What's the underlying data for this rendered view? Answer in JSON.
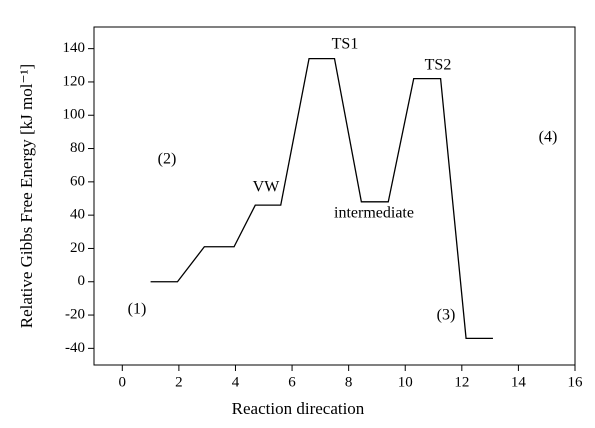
{
  "chart_data": {
    "type": "line",
    "x_label": "Reaction direcation",
    "y_label": "Relative Gibbs Free Energy [kJ mol⁻¹]",
    "x": [
      1,
      1.95,
      2.9,
      3.95,
      4.7,
      5.6,
      6.6,
      7.5,
      8.45,
      9.4,
      10.3,
      11.25,
      12.15,
      13.1
    ],
    "series": [
      {
        "color": "#000000",
        "values": [
          0,
          0,
          21,
          21,
          46,
          46,
          134,
          134,
          48,
          48,
          122,
          122,
          -34,
          -34
        ]
      }
    ],
    "xlim": [
      -1,
      16
    ],
    "xticks": [
      0,
      2,
      4,
      6,
      8,
      10,
      12,
      14,
      16
    ],
    "ylim": [
      -50,
      153
    ],
    "yticks": [
      -40,
      -20,
      0,
      20,
      40,
      60,
      80,
      100,
      120,
      140
    ],
    "annotations": [
      "TS1",
      "TS2",
      "VW",
      "intermediate",
      "(1)",
      "(2)",
      "(3)",
      "(4)"
    ]
  }
}
